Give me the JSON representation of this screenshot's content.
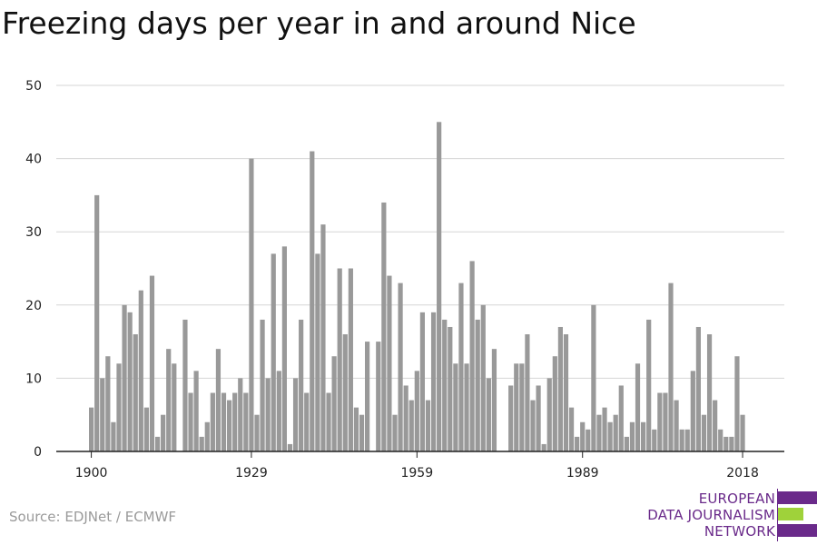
{
  "chart_data": {
    "type": "bar",
    "title": "Freezing days per year in and around Nice",
    "xlabel": "",
    "ylabel": "",
    "ylim": [
      0,
      50
    ],
    "yticks": [
      0,
      10,
      20,
      30,
      40,
      50
    ],
    "xticks": [
      1900,
      1929,
      1959,
      1989,
      2018
    ],
    "grid": true,
    "bar_color": "#999999",
    "years": [
      1900,
      1901,
      1902,
      1903,
      1904,
      1905,
      1906,
      1907,
      1908,
      1909,
      1910,
      1911,
      1912,
      1913,
      1914,
      1915,
      1916,
      1917,
      1918,
      1919,
      1920,
      1921,
      1922,
      1923,
      1924,
      1925,
      1926,
      1927,
      1928,
      1929,
      1930,
      1931,
      1932,
      1933,
      1934,
      1935,
      1936,
      1937,
      1938,
      1939,
      1940,
      1941,
      1942,
      1943,
      1944,
      1945,
      1946,
      1947,
      1948,
      1949,
      1950,
      1951,
      1952,
      1953,
      1954,
      1955,
      1956,
      1957,
      1958,
      1959,
      1960,
      1961,
      1962,
      1963,
      1964,
      1965,
      1966,
      1967,
      1968,
      1969,
      1970,
      1971,
      1972,
      1973,
      1974,
      1975,
      1976,
      1977,
      1978,
      1979,
      1980,
      1981,
      1982,
      1983,
      1984,
      1985,
      1986,
      1987,
      1988,
      1989,
      1990,
      1991,
      1992,
      1993,
      1994,
      1995,
      1996,
      1997,
      1998,
      1999,
      2000,
      2001,
      2002,
      2003,
      2004,
      2005,
      2006,
      2007,
      2008,
      2009,
      2010,
      2011,
      2012,
      2013,
      2014,
      2015,
      2016,
      2017,
      2018
    ],
    "values": [
      6,
      35,
      10,
      13,
      4,
      12,
      20,
      19,
      16,
      22,
      6,
      24,
      2,
      5,
      14,
      12,
      0,
      18,
      8,
      11,
      2,
      4,
      8,
      14,
      8,
      7,
      8,
      10,
      8,
      40,
      5,
      18,
      10,
      27,
      11,
      28,
      1,
      10,
      18,
      8,
      41,
      27,
      31,
      8,
      13,
      25,
      16,
      25,
      6,
      5,
      15,
      0,
      15,
      34,
      24,
      5,
      23,
      9,
      7,
      11,
      19,
      7,
      19,
      45,
      18,
      17,
      12,
      23,
      12,
      26,
      18,
      20,
      10,
      14,
      0,
      0,
      9,
      12,
      12,
      16,
      7,
      9,
      1,
      10,
      13,
      17,
      16,
      6,
      2,
      4,
      3,
      20,
      5,
      6,
      4,
      5,
      9,
      2,
      4,
      12,
      4,
      18,
      3,
      8,
      8,
      23,
      7,
      3,
      3,
      11,
      17,
      5,
      16,
      7,
      3,
      2,
      2,
      13,
      5
    ]
  },
  "source": "Source: EDJNet / ECMWF",
  "logo": {
    "line1": "EUROPEAN",
    "line2": "DATA JOURNALISM",
    "line3": "NETWORK",
    "colors": {
      "purple": "#6a2a8a",
      "green": "#9fd23a"
    }
  }
}
